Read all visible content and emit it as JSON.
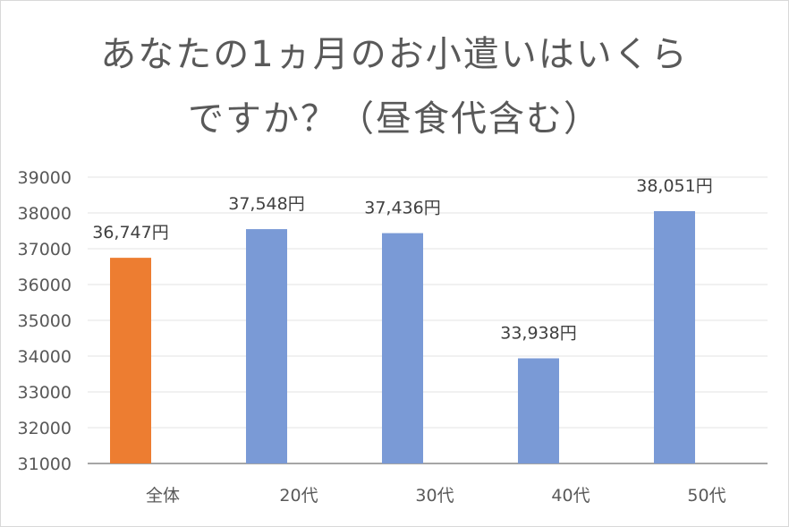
{
  "chart_data": {
    "type": "bar",
    "title_line1": "あなたの1ヵ月のお小遣いはいくら",
    "title_line2": "ですか？（昼食代含む）",
    "categories": [
      "全体",
      "20代",
      "30代",
      "40代",
      "50代"
    ],
    "values": [
      36747,
      37548,
      37436,
      33938,
      38051
    ],
    "data_labels": [
      "36,747円",
      "37,548円",
      "37,436円",
      "33,938円",
      "38,051円"
    ],
    "colors": [
      "#ED7D31",
      "#7A9AD6",
      "#7A9AD6",
      "#7A9AD6",
      "#7A9AD6"
    ],
    "yticks": [
      "39000",
      "38000",
      "37000",
      "36000",
      "35000",
      "34000",
      "33000",
      "32000",
      "31000"
    ],
    "ylim": [
      31000,
      39000
    ],
    "grid": true,
    "legend": "none"
  }
}
